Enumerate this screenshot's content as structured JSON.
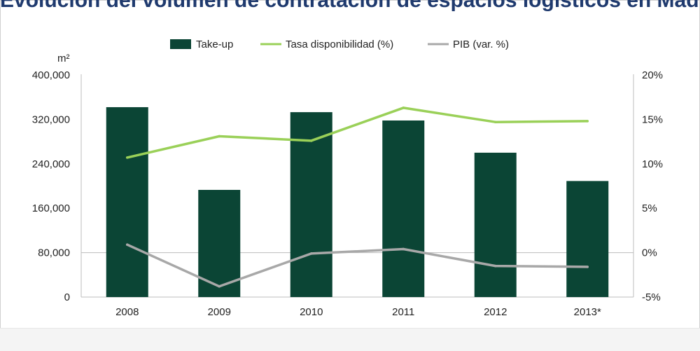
{
  "chart_data": {
    "type": "bar",
    "title": "Evolución del volumen de contratación de espacios logísticos en Madrid",
    "ylabel": "m²",
    "categories": [
      "2008",
      "2009",
      "2010",
      "2011",
      "2012",
      "2013*"
    ],
    "ylim": [
      0,
      400000
    ],
    "yticks": [
      "400,000",
      "320,000",
      "240,000",
      "160,000",
      "80,000",
      "0"
    ],
    "ytick_values": [
      400000,
      320000,
      240000,
      160000,
      80000,
      0
    ],
    "y2lim": [
      -5,
      20
    ],
    "y2ticks": [
      "20%",
      "15%",
      "10%",
      "5%",
      "0%",
      "-5%"
    ],
    "y2tick_values": [
      20,
      15,
      10,
      5,
      0,
      -5
    ],
    "series": [
      {
        "name": "Take-up",
        "type": "bar",
        "axis": "left",
        "color": "#0b4535",
        "values": [
          342000,
          193000,
          333000,
          318000,
          260000,
          209000
        ]
      },
      {
        "name": "Tasa disponibilidad (%)",
        "type": "line",
        "axis": "right",
        "color": "#9ad058",
        "values": [
          10.7,
          13.1,
          12.6,
          16.3,
          14.7,
          14.8
        ]
      },
      {
        "name": "PIB (var. %)",
        "type": "line",
        "axis": "right",
        "color": "#a8a8a8",
        "values": [
          0.9,
          -3.8,
          -0.1,
          0.4,
          -1.5,
          -1.6
        ]
      }
    ],
    "gridline": "80,000",
    "legend": "top-center"
  }
}
